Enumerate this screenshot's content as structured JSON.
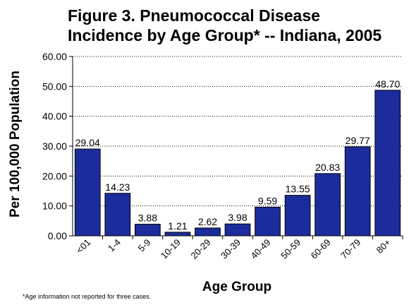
{
  "chart_data": {
    "type": "bar",
    "title_line1": "Figure 3. Pneumococcal Disease",
    "title_line2": "Incidence by Age Group* -- Indiana, 2005",
    "xlabel": "Age Group",
    "ylabel": "Per 100,000 Population",
    "ylim": [
      0,
      60
    ],
    "yticks": [
      "0.00",
      "10.00",
      "20.00",
      "30.00",
      "40.00",
      "50.00",
      "60.00"
    ],
    "categories": [
      "<01",
      "1-4",
      "5-9",
      "10-19",
      "20-29",
      "30-39",
      "40-49",
      "50-59",
      "60-69",
      "70-79",
      "80+"
    ],
    "values": [
      29.04,
      14.23,
      3.88,
      1.21,
      2.62,
      3.98,
      9.59,
      13.55,
      20.83,
      29.77,
      48.7
    ],
    "data_labels": [
      "29.04",
      "14.23",
      "3.88",
      "1.21",
      "2.62",
      "3.98",
      "9.59",
      "13.55",
      "20.83",
      "29.77",
      "48.70"
    ],
    "bar_color": "#1c2c9c",
    "grid": "dotted horizontal",
    "legend": "none",
    "footnote": "*Age information not reported for three cases."
  }
}
